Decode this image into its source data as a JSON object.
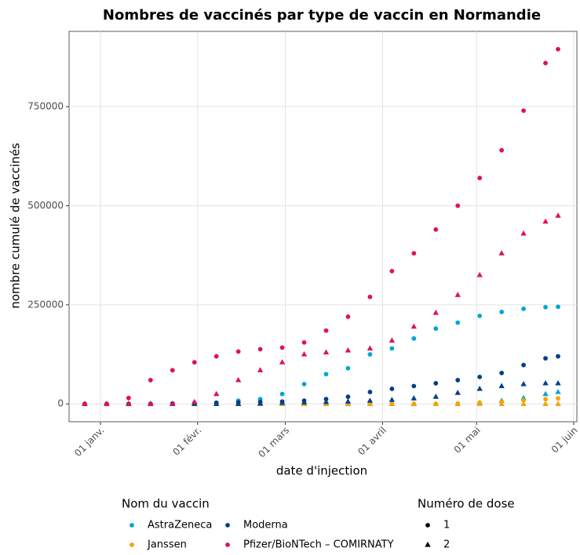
{
  "chart_data": {
    "type": "scatter",
    "title": "Nombres de vaccinés par type de vaccin en Normandie",
    "xlabel": "date d'injection",
    "ylabel": "nombre cumulé de vaccinés",
    "x": [
      "12-27",
      "01-03",
      "01-10",
      "01-17",
      "01-24",
      "01-31",
      "02-07",
      "02-14",
      "02-21",
      "02-28",
      "03-07",
      "03-14",
      "03-21",
      "03-28",
      "04-04",
      "04-11",
      "04-18",
      "04-25",
      "05-02",
      "05-09",
      "05-16",
      "05-23",
      "05-27"
    ],
    "xlim": [
      "12-22",
      "06-02"
    ],
    "xticks": [
      {
        "value": "01-01",
        "label": "01 janv."
      },
      {
        "value": "02-01",
        "label": "01 févr."
      },
      {
        "value": "03-01",
        "label": "01 mars"
      },
      {
        "value": "04-01",
        "label": "01 avril"
      },
      {
        "value": "05-01",
        "label": "01 mai"
      },
      {
        "value": "06-01",
        "label": "01 juin"
      }
    ],
    "ylim": [
      -45000,
      940000
    ],
    "yticks": [
      0,
      250000,
      500000,
      750000
    ],
    "grid": true,
    "legend_title": "Nom du vaccin",
    "dose_legend": {
      "title": "Numéro de dose",
      "items": [
        {
          "name": "1",
          "shape": "circle"
        },
        {
          "name": "2",
          "shape": "triangle"
        }
      ]
    },
    "series": [
      {
        "name": "AstraZeneca",
        "color": "#00a5d9",
        "dose_values": [
          [
            0,
            0,
            0,
            0,
            0,
            0,
            3000,
            8000,
            12000,
            25000,
            50000,
            75000,
            90000,
            125000,
            140000,
            165000,
            190000,
            205000,
            222000,
            232000,
            240000,
            244000,
            245000
          ],
          [
            0,
            0,
            0,
            0,
            0,
            0,
            0,
            0,
            0,
            0,
            0,
            0,
            0,
            0,
            0,
            0,
            0,
            0,
            3000,
            8000,
            15000,
            25000,
            30000
          ]
        ]
      },
      {
        "name": "Janssen",
        "color": "#f5a300",
        "dose_values": [
          [
            0,
            0,
            0,
            0,
            0,
            0,
            0,
            0,
            0,
            0,
            0,
            0,
            0,
            0,
            0,
            0,
            0,
            1000,
            3000,
            6000,
            9000,
            12000,
            14000
          ],
          [
            0,
            0,
            0,
            0,
            0,
            0,
            0,
            0,
            0,
            0,
            0,
            0,
            0,
            0,
            0,
            0,
            0,
            0,
            0,
            0,
            0,
            0,
            0
          ]
        ]
      },
      {
        "name": "Moderna",
        "color": "#003f8a",
        "dose_values": [
          [
            0,
            0,
            0,
            0,
            1000,
            2000,
            3000,
            4000,
            5000,
            6000,
            8000,
            12000,
            18000,
            30000,
            38000,
            45000,
            52000,
            60000,
            68000,
            78000,
            98000,
            115000,
            120000
          ],
          [
            0,
            0,
            0,
            0,
            0,
            0,
            0,
            0,
            1000,
            3000,
            4000,
            5000,
            6000,
            8000,
            10000,
            14000,
            18000,
            28000,
            38000,
            45000,
            50000,
            52000,
            52000
          ]
        ]
      },
      {
        "name": "Pfizer/BioNTech – COMIRNATY",
        "color": "#e0105c",
        "dose_values": [
          [
            0,
            0,
            15000,
            60000,
            85000,
            105000,
            120000,
            132000,
            138000,
            142000,
            155000,
            185000,
            220000,
            270000,
            335000,
            380000,
            440000,
            500000,
            570000,
            640000,
            740000,
            860000,
            895000
          ],
          [
            0,
            0,
            0,
            0,
            0,
            5000,
            25000,
            60000,
            85000,
            105000,
            125000,
            130000,
            135000,
            140000,
            160000,
            195000,
            230000,
            275000,
            325000,
            380000,
            430000,
            460000,
            475000
          ]
        ]
      }
    ]
  }
}
